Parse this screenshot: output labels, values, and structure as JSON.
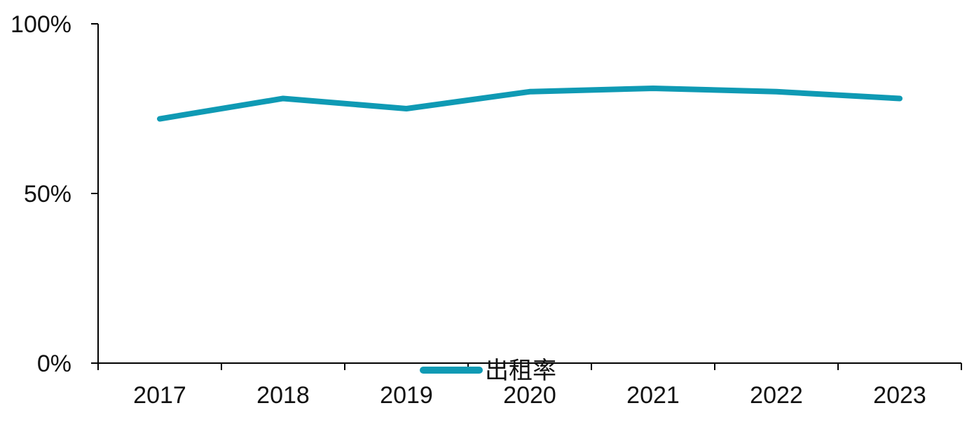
{
  "chart_data": {
    "type": "line",
    "categories": [
      "2017",
      "2018",
      "2019",
      "2020",
      "2021",
      "2022",
      "2023"
    ],
    "series": [
      {
        "name": "出租率",
        "values": [
          72,
          78,
          75,
          80,
          81,
          80,
          78
        ],
        "color": "#0F9AB4"
      }
    ],
    "y_ticks": [
      0,
      50,
      100
    ],
    "y_tick_labels": [
      "0%",
      "50%",
      "100%"
    ],
    "ylim": [
      0,
      100
    ],
    "title": "",
    "xlabel": "",
    "ylabel": "",
    "grid": false,
    "legend_position": "bottom-center"
  }
}
